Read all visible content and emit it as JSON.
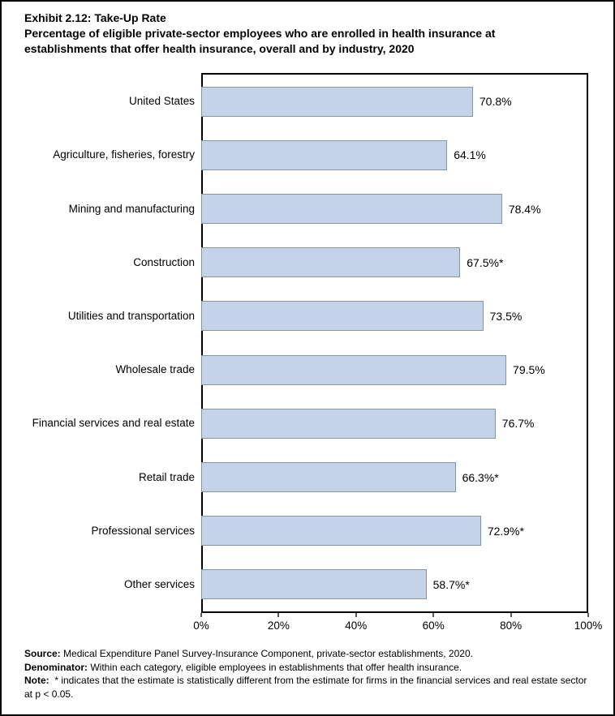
{
  "title": {
    "exhibit": "Exhibit 2.12: Take-Up Rate",
    "subtitle": "Percentage of eligible private-sector employees who are enrolled in health insurance at establishments that offer health insurance, overall and by industry, 2020"
  },
  "chart_data": {
    "type": "bar",
    "orientation": "horizontal",
    "categories": [
      "United States",
      "Agriculture, fisheries, forestry",
      "Mining and manufacturing",
      "Construction",
      "Utilities and transportation",
      "Wholesale trade",
      "Financial services and real estate",
      "Retail trade",
      "Professional services",
      "Other services"
    ],
    "values": [
      70.8,
      64.1,
      78.4,
      67.5,
      73.5,
      79.5,
      76.7,
      66.3,
      72.9,
      58.7
    ],
    "value_labels": [
      "70.8%",
      "64.1%",
      "78.4%",
      "67.5%*",
      "73.5%",
      "79.5%",
      "76.7%",
      "66.3%*",
      "72.9%*",
      "58.7%*"
    ],
    "x_ticks": [
      "0%",
      "20%",
      "40%",
      "60%",
      "80%",
      "100%"
    ],
    "xlim": [
      0,
      100
    ],
    "grid": false,
    "legend": "none",
    "bar_color": "#c4d3e8",
    "bar_border_color": "#89939e"
  },
  "footnotes": [
    {
      "label": "Source:",
      "text": " Medical Expenditure Panel Survey-Insurance Component, private-sector establishments, 2020."
    },
    {
      "label": "Denominator:",
      "text": " Within each category, eligible employees in establishments that offer health insurance."
    },
    {
      "label": "Note:",
      "text": "  * indicates that the estimate is statistically different from the estimate for firms in the financial services and real estate sector at p < 0.05."
    }
  ]
}
